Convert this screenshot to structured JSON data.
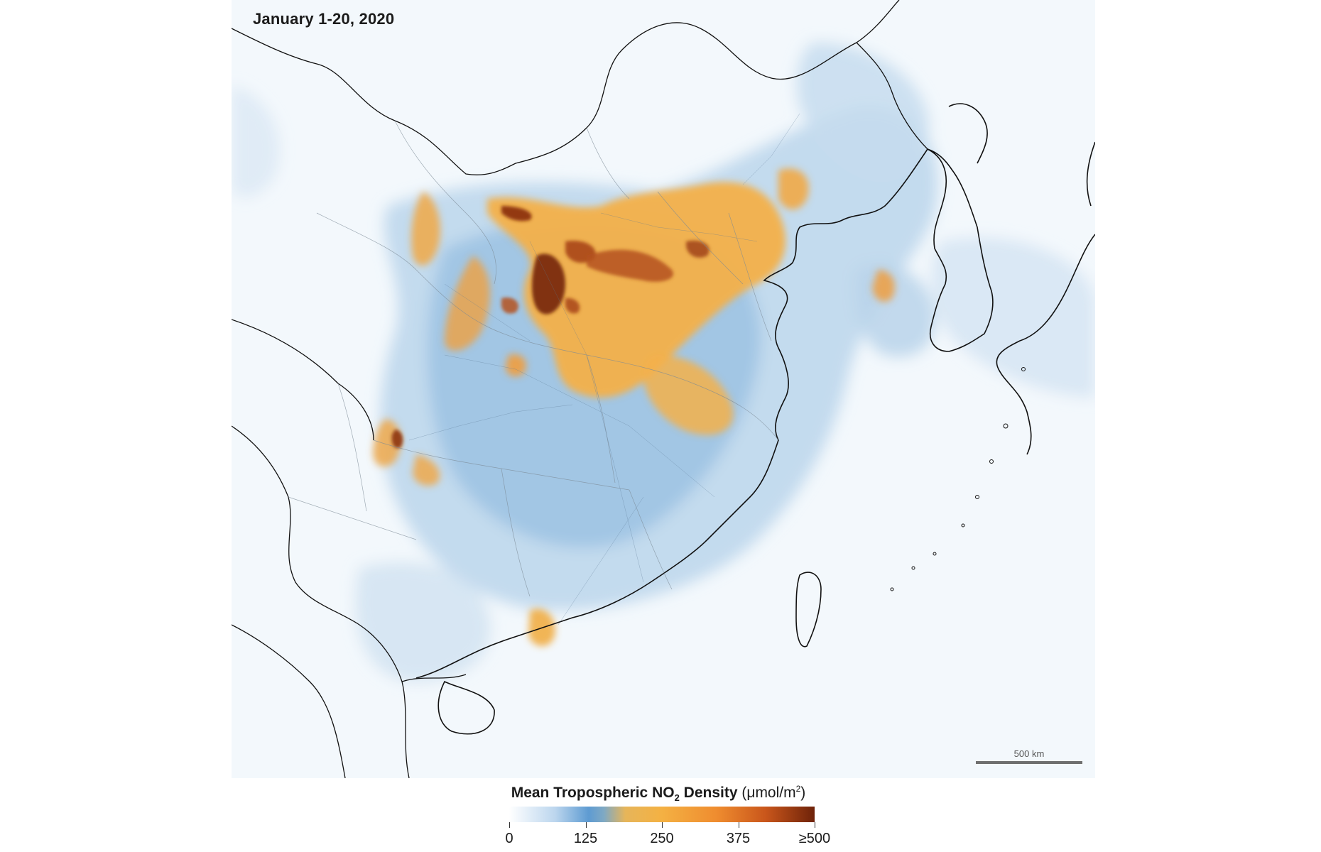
{
  "map": {
    "date_label": "January 1-20, 2020",
    "scale_bar_label": "500 km"
  },
  "legend": {
    "title_main": "Mean Tropospheric NO",
    "title_subscript": "2",
    "title_bold_tail": " Density",
    "title_units_prefix": " (μmol/m",
    "title_units_superscript": "2",
    "title_units_suffix": ")",
    "ticks": [
      "0",
      "125",
      "250",
      "375",
      "≥500"
    ],
    "colors": {
      "low": "#ffffff",
      "light_blue": "#bcd6ee",
      "blue": "#5e9bd2",
      "orange": "#f4b143",
      "dark_orange": "#ef8c2f",
      "high": "#6e2209"
    }
  }
}
